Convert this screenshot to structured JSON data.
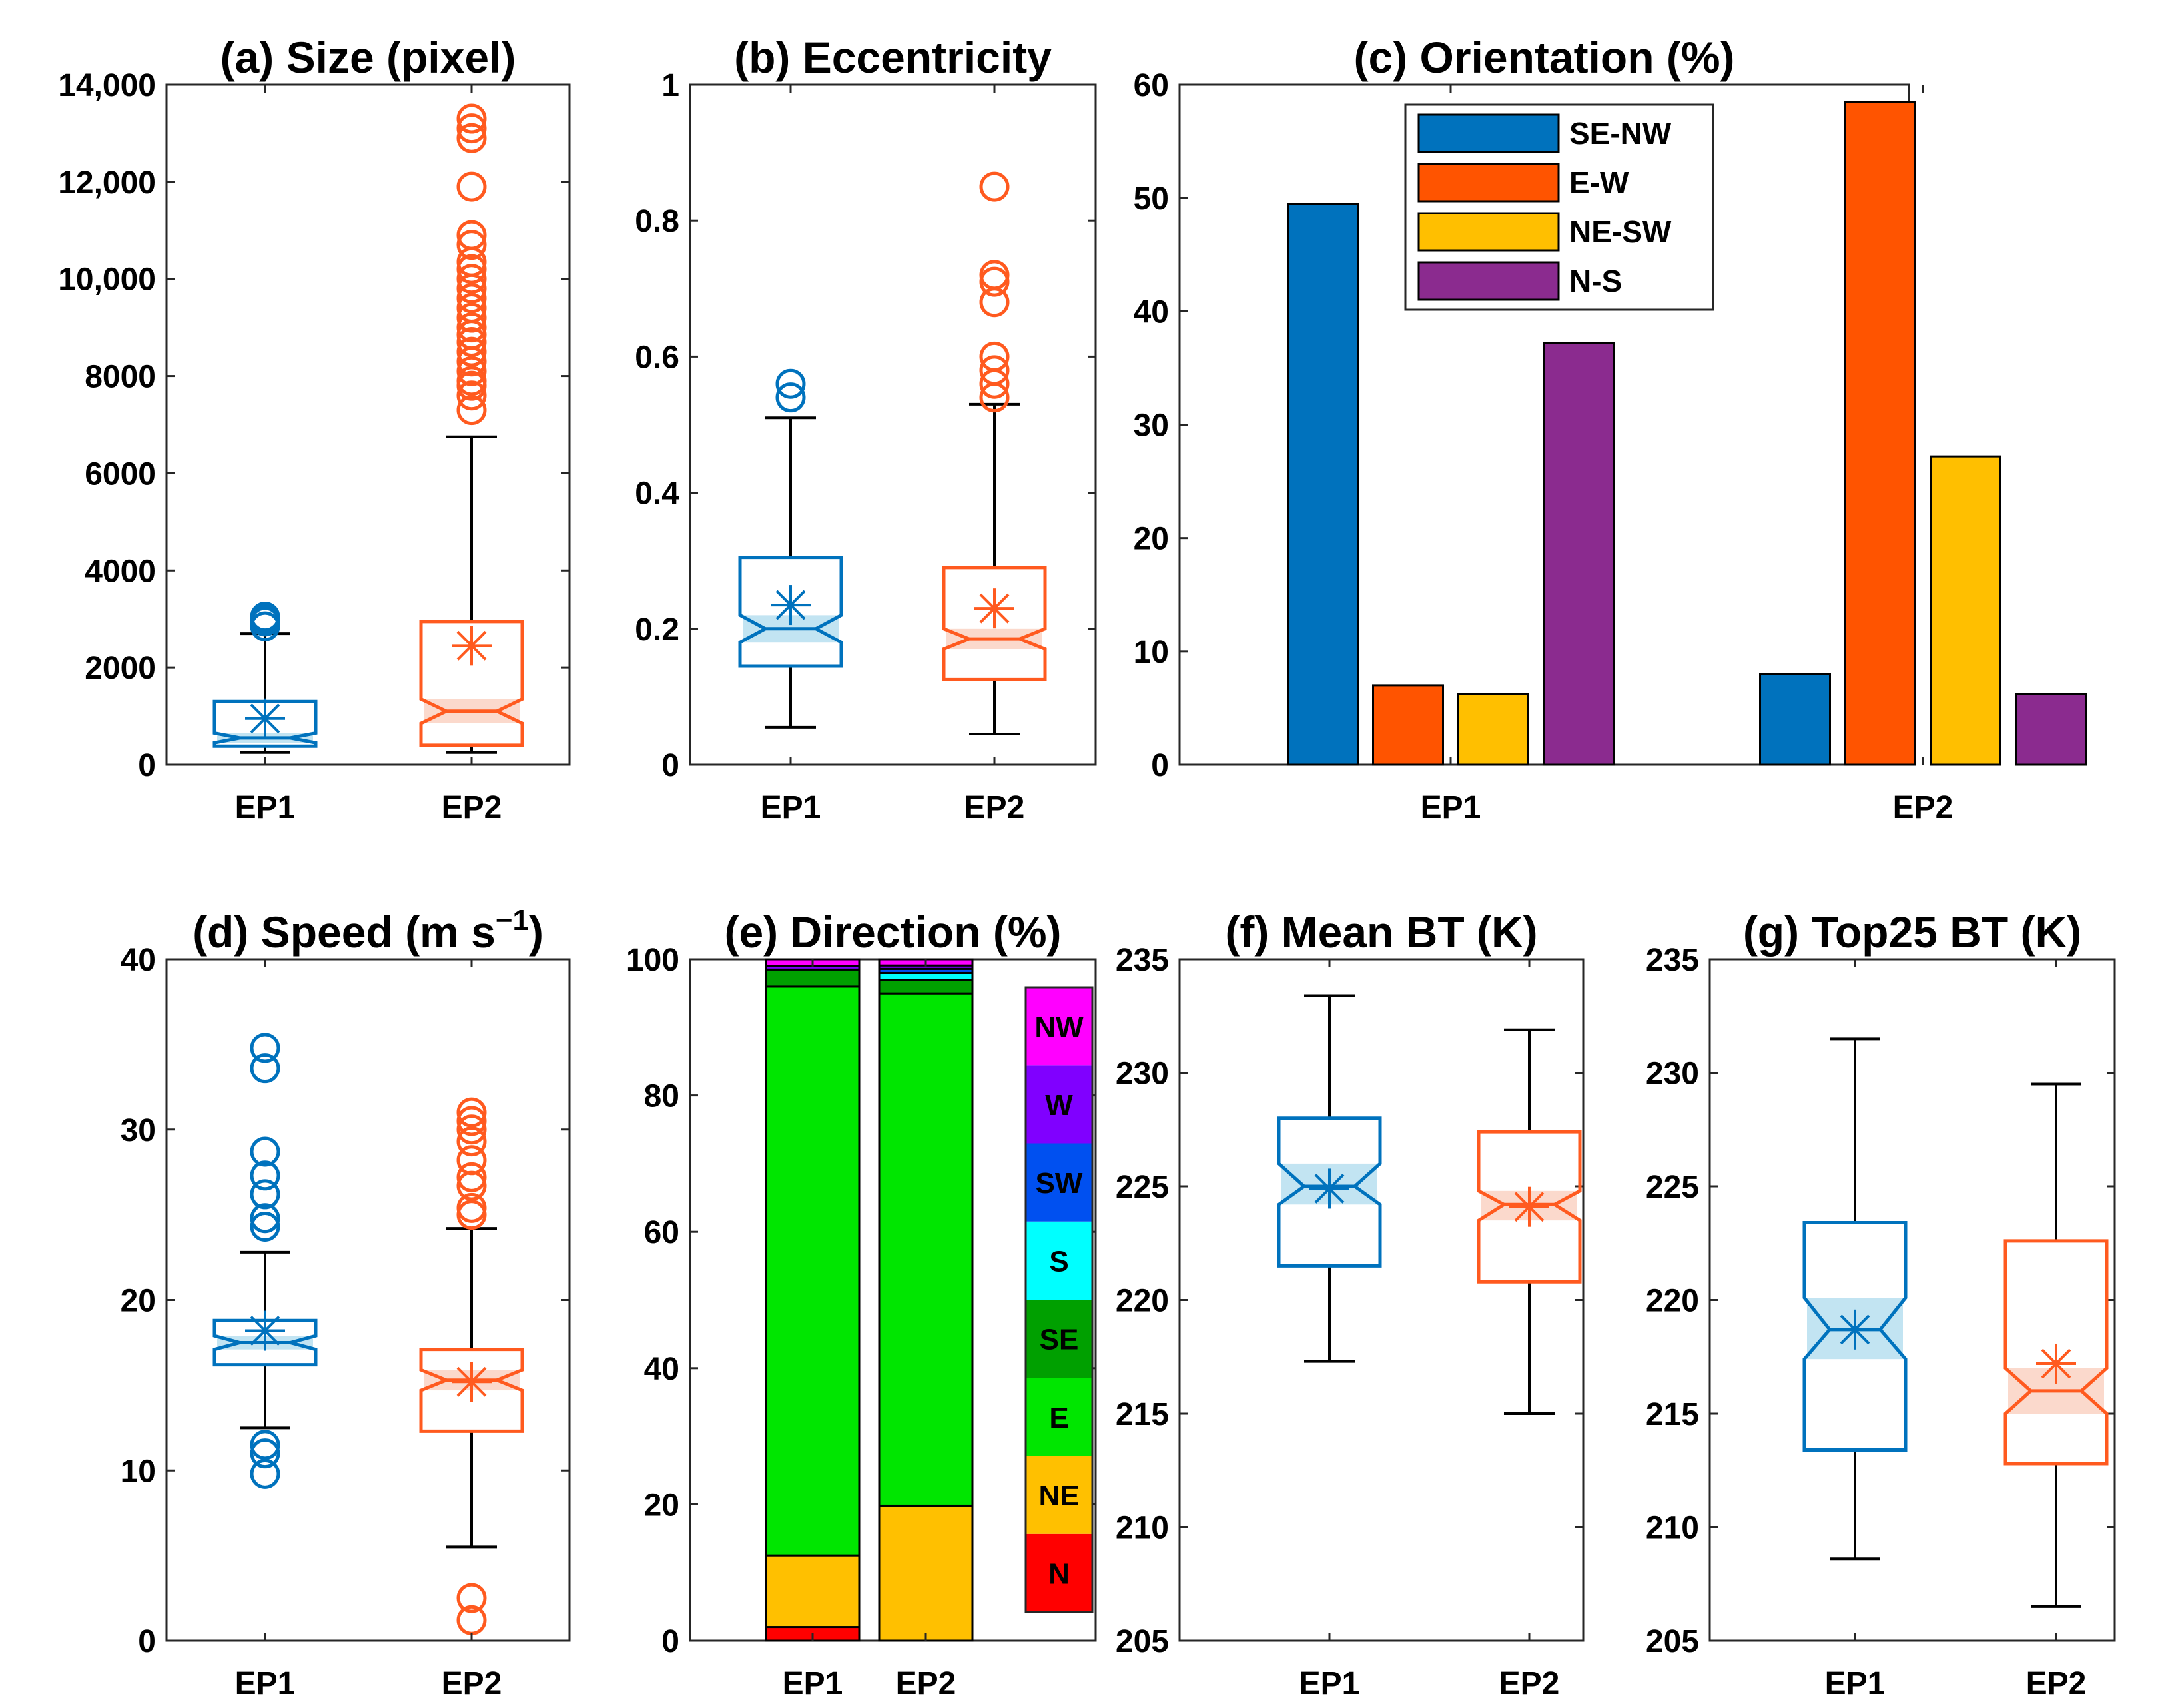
{
  "colors": {
    "ep1": "#0072BD",
    "ep2": "#FF5A1F",
    "ep1_fill": "#C2E4F2",
    "ep2_fill": "#FBD9CC"
  },
  "chart_data": [
    {
      "panel": "a",
      "type": "box",
      "title": "(a) Size (pixel)",
      "categories": [
        "EP1",
        "EP2"
      ],
      "ylim": [
        0,
        14000
      ],
      "yticks": [
        0,
        2000,
        4000,
        6000,
        8000,
        10000,
        12000,
        14000
      ],
      "yticklabels": [
        "0",
        "2000",
        "4000",
        "6000",
        "8000",
        "10,000",
        "12,000",
        "14,000"
      ],
      "boxes": [
        {
          "name": "EP1",
          "whisker_low": 250,
          "q1": 380,
          "median": 550,
          "q3": 1300,
          "whisker_high": 2700,
          "mean": 950,
          "notch_low": 450,
          "notch_high": 650,
          "outliers": [
            2850,
            2950,
            3000,
            3050
          ]
        },
        {
          "name": "EP2",
          "whisker_low": 250,
          "q1": 400,
          "median": 1100,
          "q3": 2950,
          "whisker_high": 6750,
          "mean": 2450,
          "notch_low": 850,
          "notch_high": 1350,
          "outliers": [
            7300,
            7600,
            7800,
            7900,
            8100,
            8300,
            8500,
            8700,
            8850,
            9000,
            9200,
            9400,
            9600,
            9800,
            10000,
            10200,
            10350,
            10700,
            10900,
            11900,
            12900,
            13100,
            13300
          ]
        }
      ]
    },
    {
      "panel": "b",
      "type": "box",
      "title": "(b) Eccentricity",
      "categories": [
        "EP1",
        "EP2"
      ],
      "ylim": [
        0,
        1
      ],
      "yticks": [
        0,
        0.2,
        0.4,
        0.6,
        0.8,
        1
      ],
      "yticklabels": [
        "0",
        "0.2",
        "0.4",
        "0.6",
        "0.8",
        "1"
      ],
      "boxes": [
        {
          "name": "EP1",
          "whisker_low": 0.055,
          "q1": 0.145,
          "median": 0.2,
          "q3": 0.305,
          "whisker_high": 0.51,
          "mean": 0.235,
          "notch_low": 0.18,
          "notch_high": 0.22,
          "outliers": [
            0.54,
            0.56
          ]
        },
        {
          "name": "EP2",
          "whisker_low": 0.045,
          "q1": 0.125,
          "median": 0.185,
          "q3": 0.29,
          "whisker_high": 0.53,
          "mean": 0.23,
          "notch_low": 0.17,
          "notch_high": 0.2,
          "outliers": [
            0.54,
            0.56,
            0.58,
            0.6,
            0.68,
            0.71,
            0.72,
            0.85
          ]
        }
      ]
    },
    {
      "panel": "c",
      "type": "bar",
      "title": "(c) Orientation (%)",
      "categories": [
        "EP1",
        "EP2"
      ],
      "ylim": [
        0,
        60
      ],
      "yticks": [
        0,
        10,
        20,
        30,
        40,
        50,
        60
      ],
      "yticklabels": [
        "0",
        "10",
        "20",
        "30",
        "40",
        "50",
        "60"
      ],
      "legend_position": "top-left",
      "series": [
        {
          "name": "SE-NW",
          "color": "#0072BD",
          "values": [
            49.5,
            8
          ]
        },
        {
          "name": "E-W",
          "color": "#FF5400",
          "values": [
            7,
            58.5
          ]
        },
        {
          "name": "NE-SW",
          "color": "#FFBF00",
          "values": [
            6.2,
            27.2
          ]
        },
        {
          "name": "N-S",
          "color": "#8B2B8F",
          "values": [
            37.2,
            6.2
          ]
        }
      ]
    },
    {
      "panel": "d",
      "type": "box",
      "title": "(d) Speed (m s",
      "title_sup": "−1",
      "title_end": ")",
      "categories": [
        "EP1",
        "EP2"
      ],
      "ylim": [
        0,
        40
      ],
      "yticks": [
        0,
        10,
        20,
        30,
        40
      ],
      "yticklabels": [
        "0",
        "10",
        "20",
        "30",
        "40"
      ],
      "boxes": [
        {
          "name": "EP1",
          "whisker_low": 12.5,
          "q1": 16.2,
          "median": 17.5,
          "q3": 18.8,
          "whisker_high": 22.8,
          "mean": 18.2,
          "notch_low": 17.1,
          "notch_high": 17.9,
          "outliers": [
            9.8,
            11,
            11.5,
            24.3,
            24.8,
            26.2,
            27.3,
            28.7,
            33.6,
            34.8
          ]
        },
        {
          "name": "EP2",
          "whisker_low": 5.5,
          "q1": 12.3,
          "median": 15.3,
          "q3": 17.1,
          "whisker_high": 24.2,
          "mean": 15.2,
          "notch_low": 14.7,
          "notch_high": 15.9,
          "outliers": [
            1.2,
            2.5,
            25,
            25.4,
            26.7,
            27.2,
            28.2,
            29.3,
            30,
            30.5,
            31
          ]
        }
      ]
    },
    {
      "panel": "e",
      "type": "stacked-bar",
      "title": "(e) Direction (%)",
      "categories": [
        "EP1",
        "EP2"
      ],
      "ylim": [
        0,
        100
      ],
      "yticks": [
        0,
        20,
        40,
        60,
        80,
        100
      ],
      "yticklabels": [
        "0",
        "20",
        "40",
        "60",
        "80",
        "100"
      ],
      "series": [
        {
          "name": "N",
          "color": "#FF0000",
          "values": [
            2,
            0
          ]
        },
        {
          "name": "NE",
          "color": "#FFC000",
          "values": [
            10.5,
            19.8
          ]
        },
        {
          "name": "E",
          "color": "#00E600",
          "values": [
            83.5,
            75.2
          ]
        },
        {
          "name": "SE",
          "color": "#00A000",
          "values": [
            2.5,
            2
          ]
        },
        {
          "name": "S",
          "color": "#00FFFF",
          "values": [
            0,
            1
          ]
        },
        {
          "name": "SW",
          "color": "#0050F0",
          "values": [
            0,
            0.6
          ]
        },
        {
          "name": "W",
          "color": "#8000FF",
          "values": [
            0.5,
            0.5
          ]
        },
        {
          "name": "NW",
          "color": "#FF00FF",
          "values": [
            1,
            0.9
          ]
        }
      ]
    },
    {
      "panel": "f",
      "type": "box",
      "title": "(f) Mean BT (K)",
      "categories": [
        "EP1",
        "EP2"
      ],
      "ylim": [
        205,
        235
      ],
      "yticks": [
        205,
        210,
        215,
        220,
        225,
        230,
        235
      ],
      "yticklabels": [
        "205",
        "210",
        "215",
        "220",
        "225",
        "230",
        "235"
      ],
      "boxes": [
        {
          "name": "EP1",
          "whisker_low": 217.3,
          "q1": 221.5,
          "median": 225,
          "q3": 228,
          "whisker_high": 233.4,
          "mean": 224.9,
          "notch_low": 224.2,
          "notch_high": 226,
          "outliers": []
        },
        {
          "name": "EP2",
          "whisker_low": 215,
          "q1": 220.8,
          "median": 224.2,
          "q3": 227.4,
          "whisker_high": 231.9,
          "mean": 224.1,
          "notch_low": 223.5,
          "notch_high": 224.8,
          "outliers": []
        }
      ]
    },
    {
      "panel": "g",
      "type": "box",
      "title": "(g) Top25 BT (K)",
      "categories": [
        "EP1",
        "EP2"
      ],
      "ylim": [
        205,
        235
      ],
      "yticks": [
        205,
        210,
        215,
        220,
        225,
        230,
        235
      ],
      "yticklabels": [
        "205",
        "210",
        "215",
        "220",
        "225",
        "230",
        "235"
      ],
      "boxes": [
        {
          "name": "EP1",
          "whisker_low": 208.6,
          "q1": 213.4,
          "median": 218.7,
          "q3": 223.4,
          "whisker_high": 231.5,
          "mean": 218.7,
          "notch_low": 217.4,
          "notch_high": 220.1,
          "outliers": []
        },
        {
          "name": "EP2",
          "whisker_low": 206.5,
          "q1": 212.8,
          "median": 216,
          "q3": 222.6,
          "whisker_high": 229.5,
          "mean": 217.2,
          "notch_low": 215,
          "notch_high": 217,
          "outliers": []
        }
      ]
    }
  ]
}
